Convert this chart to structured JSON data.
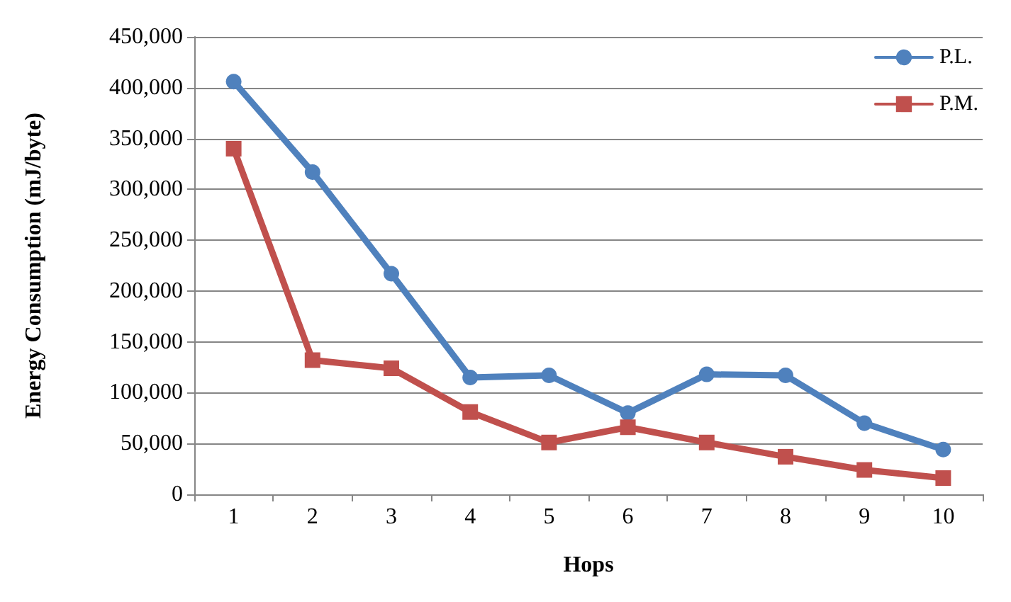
{
  "chart_data": {
    "type": "line",
    "xlabel": "Hops",
    "ylabel": "Energy Consumption (mJ/byte)",
    "categories": [
      "1",
      "2",
      "3",
      "4",
      "5",
      "6",
      "7",
      "8",
      "9",
      "10"
    ],
    "series": [
      {
        "name": "P.L.",
        "color": "#4f81bd",
        "marker": "circle",
        "values": [
          406000,
          317000,
          217000,
          115000,
          117000,
          80000,
          118000,
          117000,
          70000,
          44000
        ]
      },
      {
        "name": "P.M.",
        "color": "#c0504d",
        "marker": "square",
        "values": [
          340000,
          132000,
          124000,
          81000,
          51000,
          66000,
          51000,
          37000,
          24000,
          16000
        ]
      }
    ],
    "ylim": [
      0,
      450000
    ],
    "yticks": [
      {
        "value": 0,
        "label": "0"
      },
      {
        "value": 50000,
        "label": "50,000"
      },
      {
        "value": 100000,
        "label": "100,000"
      },
      {
        "value": 150000,
        "label": "150,000"
      },
      {
        "value": 200000,
        "label": "200,000"
      },
      {
        "value": 250000,
        "label": "250,000"
      },
      {
        "value": 300000,
        "label": "300,000"
      },
      {
        "value": 350000,
        "label": "350,000"
      },
      {
        "value": 400000,
        "label": "400,000"
      },
      {
        "value": 450000,
        "label": "450,000"
      }
    ],
    "grid": "y",
    "legend": "top right",
    "line_style": "solid"
  }
}
